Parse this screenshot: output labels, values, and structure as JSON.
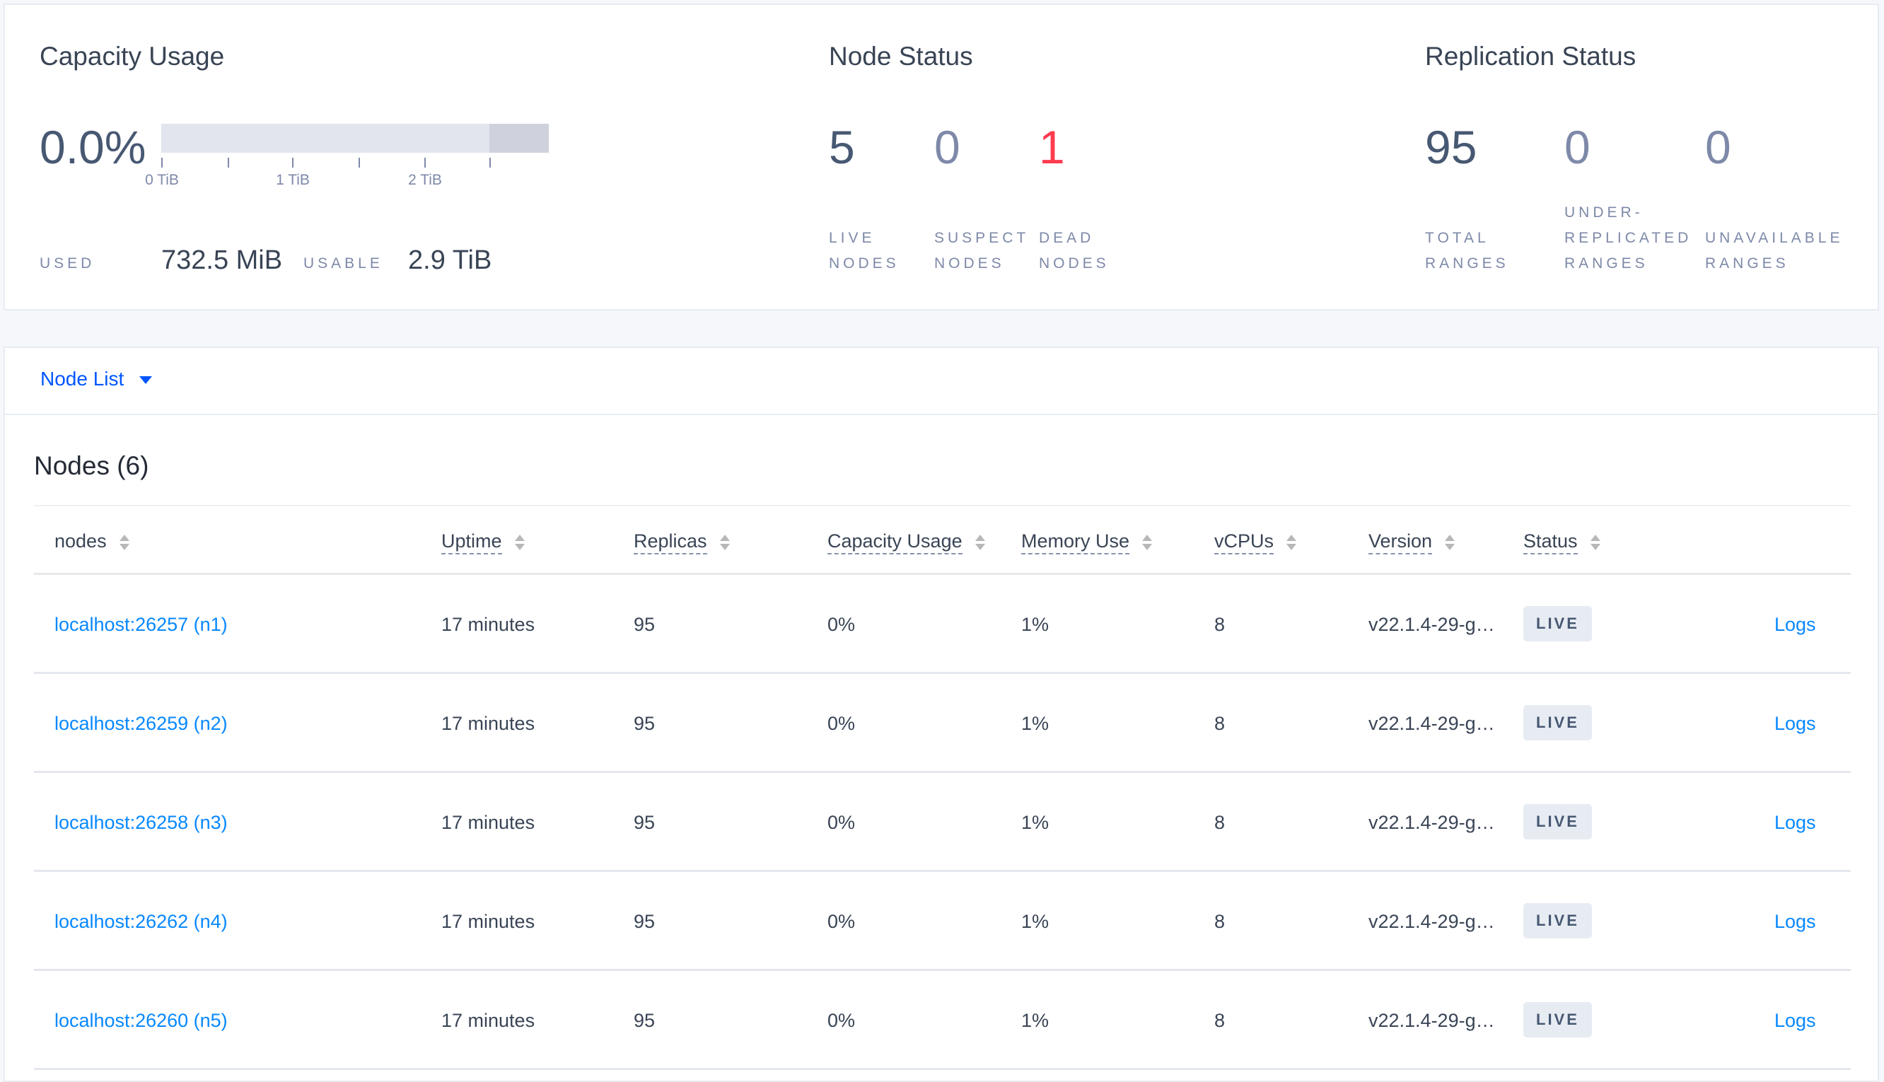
{
  "capacity": {
    "title": "Capacity Usage",
    "percent": "0.0%",
    "used_fraction": 0.0,
    "bar_ticks": [
      "0 TiB",
      "",
      "1 TiB",
      "",
      "2 TiB",
      ""
    ],
    "used_label": "USED",
    "used_value": "732.5 MiB",
    "usable_label": "USABLE",
    "usable_value": "2.9 TiB"
  },
  "node_status": {
    "title": "Node Status",
    "stats": [
      {
        "value": "5",
        "label1": "LIVE",
        "label2": "NODES",
        "color": "#475872"
      },
      {
        "value": "0",
        "label1": "SUSPECT",
        "label2": "NODES",
        "color": "#7e89a9"
      },
      {
        "value": "1",
        "label1": "DEAD",
        "label2": "NODES",
        "color": "#ff3b4e"
      }
    ]
  },
  "replication_status": {
    "title": "Replication Status",
    "stats": [
      {
        "value": "95",
        "label1": "",
        "label2": "TOTAL",
        "label3": "RANGES",
        "color": "#475872"
      },
      {
        "value": "0",
        "label1": "UNDER-",
        "label2": "REPLICATED",
        "label3": "RANGES",
        "color": "#7e89a9"
      },
      {
        "value": "0",
        "label1": "",
        "label2": "UNAVAILABLE",
        "label3": "RANGES",
        "color": "#7e89a9"
      }
    ]
  },
  "node_list": {
    "dropdown_label": "Node List",
    "title": "Nodes (6)",
    "columns": [
      "nodes",
      "Uptime",
      "Replicas",
      "Capacity Usage",
      "Memory Use",
      "vCPUs",
      "Version",
      "Status"
    ],
    "logs_label": "Logs",
    "rows": [
      {
        "node": "localhost:26257 (n1)",
        "uptime": "17 minutes",
        "replicas": "95",
        "capacity": "0%",
        "memory": "1%",
        "vcpus": "8",
        "version": "v22.1.4-29-g…",
        "status": "LIVE"
      },
      {
        "node": "localhost:26259 (n2)",
        "uptime": "17 minutes",
        "replicas": "95",
        "capacity": "0%",
        "memory": "1%",
        "vcpus": "8",
        "version": "v22.1.4-29-g…",
        "status": "LIVE"
      },
      {
        "node": "localhost:26258 (n3)",
        "uptime": "17 minutes",
        "replicas": "95",
        "capacity": "0%",
        "memory": "1%",
        "vcpus": "8",
        "version": "v22.1.4-29-g…",
        "status": "LIVE"
      },
      {
        "node": "localhost:26262 (n4)",
        "uptime": "17 minutes",
        "replicas": "95",
        "capacity": "0%",
        "memory": "1%",
        "vcpus": "8",
        "version": "v22.1.4-29-g…",
        "status": "LIVE"
      },
      {
        "node": "localhost:26260 (n5)",
        "uptime": "17 minutes",
        "replicas": "95",
        "capacity": "0%",
        "memory": "1%",
        "vcpus": "8",
        "version": "v22.1.4-29-g…",
        "status": "LIVE"
      }
    ]
  }
}
